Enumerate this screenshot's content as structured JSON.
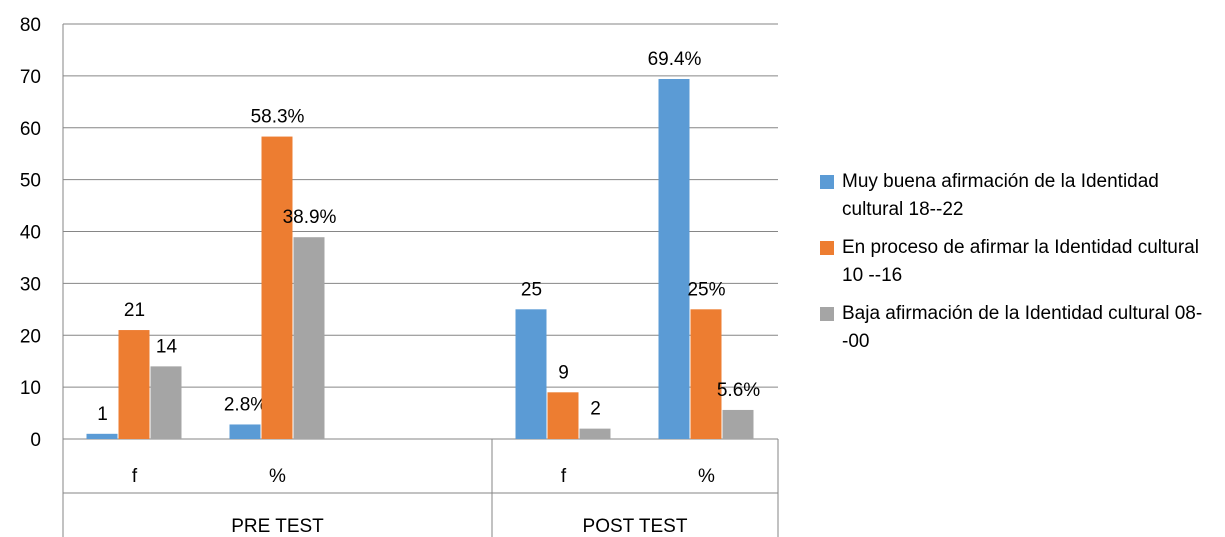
{
  "chart_data": {
    "type": "bar",
    "groups": [
      {
        "label": "PRE TEST",
        "categories": [
          "f",
          "%"
        ]
      },
      {
        "label": "POST TEST",
        "categories": [
          "f",
          "%"
        ]
      }
    ],
    "series": [
      {
        "name": "Muy buena afirmación de la Identidad cultural  18--22",
        "color": "#5B9BD5",
        "values": [
          1,
          2.8,
          25,
          69.4
        ],
        "labels": [
          "1",
          "2.8%",
          "25",
          "69.4%"
        ]
      },
      {
        "name": "En proceso de afirmar la  Identidad cultural  10 --16",
        "color": "#ED7D31",
        "values": [
          21,
          58.3,
          9,
          25
        ],
        "labels": [
          "21",
          "58.3%",
          "9",
          "25%"
        ]
      },
      {
        "name": "Baja afirmación de la Identidad cultural  08- -00",
        "color": "#A5A5A5",
        "values": [
          14,
          38.9,
          2,
          5.6
        ],
        "labels": [
          "14",
          "38.9%",
          "2",
          "5.6%"
        ]
      }
    ],
    "ylim": [
      0,
      80
    ],
    "yticks": [
      0,
      10,
      20,
      30,
      40,
      50,
      60,
      70,
      80
    ],
    "grid": true,
    "legend_position": "right"
  }
}
